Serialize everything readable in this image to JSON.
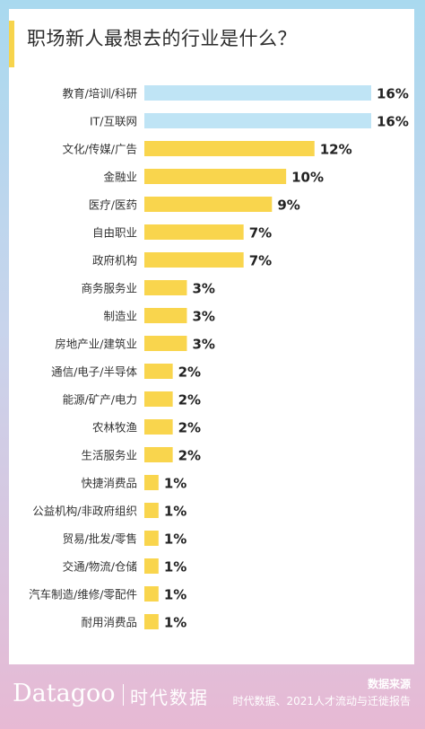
{
  "chart_data": {
    "type": "bar",
    "orientation": "horizontal",
    "title": "职场新人最想去的行业是什么？",
    "categories": [
      "教育/培训/科研",
      "IT/互联网",
      "文化/传媒/广告",
      "金融业",
      "医疗/医药",
      "自由职业",
      "政府机构",
      "商务服务业",
      "制造业",
      "房地产业/建筑业",
      "通信/电子/半导体",
      "能源/矿产/电力",
      "农林牧渔",
      "生活服务业",
      "快捷消费品",
      "公益机构/非政府组织",
      "贸易/批发/零售",
      "交通/物流/仓储",
      "汽车制造/维修/零配件",
      "耐用消费品"
    ],
    "values": [
      16,
      16,
      12,
      10,
      9,
      7,
      7,
      3,
      3,
      3,
      2,
      2,
      2,
      2,
      1,
      1,
      1,
      1,
      1,
      1
    ],
    "value_labels": [
      "16%",
      "16%",
      "12%",
      "10%",
      "9%",
      "7%",
      "7%",
      "3%",
      "3%",
      "3%",
      "2%",
      "2%",
      "2%",
      "2%",
      "1%",
      "1%",
      "1%",
      "1%",
      "1%",
      "1%"
    ],
    "colors": {
      "highlight": "#bfe4f5",
      "default": "#f9d54d"
    },
    "highlight_count": 2,
    "xlim": [
      0,
      16
    ],
    "grid": false
  },
  "footer": {
    "logo": "Datagoo",
    "logo_cn": "时代数据",
    "source_title": "数据来源",
    "source_text": "时代数据、2021人才流动与迁徙报告"
  }
}
